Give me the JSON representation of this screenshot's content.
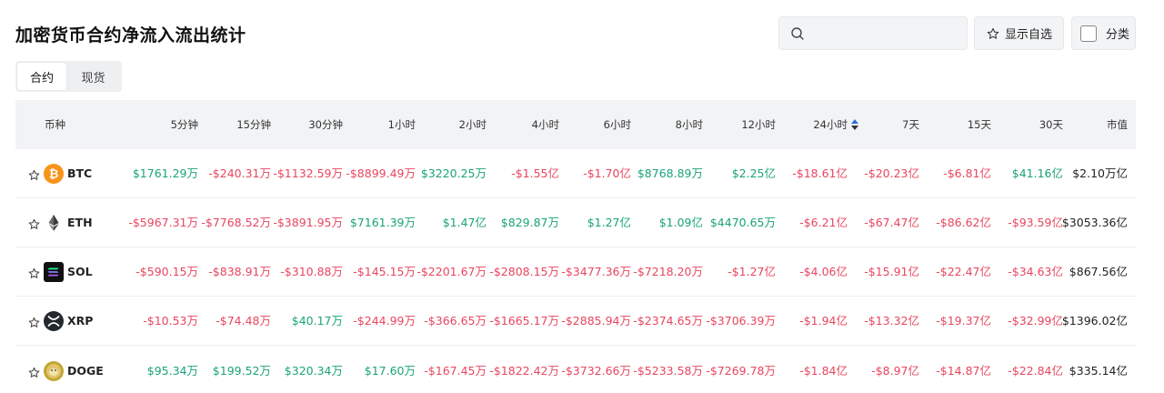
{
  "title": "加密货币合约净流入流出统计",
  "search": {
    "placeholder": ""
  },
  "buttons": {
    "show_favorites": "显示自选",
    "category": "分类"
  },
  "tabs": [
    {
      "label": "合约",
      "active": true
    },
    {
      "label": "现货",
      "active": false
    }
  ],
  "table": {
    "headers": [
      "币种",
      "5分钟",
      "15分钟",
      "30分钟",
      "1小时",
      "2小时",
      "4小时",
      "6小时",
      "8小时",
      "12小时",
      "24小时",
      "7天",
      "15天",
      "30天",
      "市值"
    ],
    "sorted_column": "24小时",
    "rows": [
      {
        "symbol": "BTC",
        "icon": "bitcoin-logo",
        "values": [
          "$1761.29万",
          "-$240.31万",
          "-$1132.59万",
          "-$8899.49万",
          "$3220.25万",
          "-$1.55亿",
          "-$1.70亿",
          "$8768.89万",
          "$2.25亿",
          "-$18.61亿",
          "-$20.23亿",
          "-$6.81亿",
          "$41.16亿"
        ],
        "market_cap": "$2.10万亿"
      },
      {
        "symbol": "ETH",
        "icon": "ethereum-logo",
        "values": [
          "-$5967.31万",
          "-$7768.52万",
          "-$3891.95万",
          "$7161.39万",
          "$1.47亿",
          "$829.87万",
          "$1.27亿",
          "$1.09亿",
          "$4470.65万",
          "-$6.21亿",
          "-$67.47亿",
          "-$86.62亿",
          "-$93.59亿"
        ],
        "market_cap": "$3053.36亿"
      },
      {
        "symbol": "SOL",
        "icon": "solana-logo",
        "values": [
          "-$590.15万",
          "-$838.91万",
          "-$310.88万",
          "-$145.15万",
          "-$2201.67万",
          "-$2808.15万",
          "-$3477.36万",
          "-$7218.20万",
          "-$1.27亿",
          "-$4.06亿",
          "-$15.91亿",
          "-$22.47亿",
          "-$34.63亿"
        ],
        "market_cap": "$867.56亿"
      },
      {
        "symbol": "XRP",
        "icon": "xrp-logo",
        "values": [
          "-$10.53万",
          "-$74.48万",
          "$40.17万",
          "-$244.99万",
          "-$366.65万",
          "-$1665.17万",
          "-$2885.94万",
          "-$2374.65万",
          "-$3706.39万",
          "-$1.94亿",
          "-$13.32亿",
          "-$19.37亿",
          "-$32.99亿"
        ],
        "market_cap": "$1396.02亿"
      },
      {
        "symbol": "DOGE",
        "icon": "dogecoin-logo",
        "values": [
          "$95.34万",
          "$199.52万",
          "$320.34万",
          "$17.60万",
          "-$167.45万",
          "-$1822.42万",
          "-$3732.66万",
          "-$5233.58万",
          "-$7269.78万",
          "-$1.84亿",
          "-$8.97亿",
          "-$14.87亿",
          "-$22.84亿"
        ],
        "market_cap": "$335.14亿"
      }
    ]
  },
  "colors": {
    "positive": "#1aa37a",
    "negative": "#e8465e",
    "header_bg": "#f2f3f5",
    "sort_active": "#2f6fe0"
  }
}
